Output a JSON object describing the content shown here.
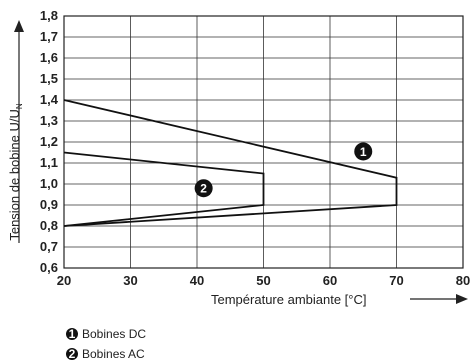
{
  "chart_data": {
    "type": "line",
    "ylabel_main": "Tension de bobine U/U",
    "ylabel_sub": "N",
    "xlabel": "Température ambiante [°C]",
    "xlim": [
      20,
      80
    ],
    "ylim": [
      0.6,
      1.8
    ],
    "grid": true,
    "x_ticks": [
      "20",
      "30",
      "40",
      "50",
      "60",
      "70",
      "80"
    ],
    "y_ticks": [
      "0,6",
      "0,7",
      "0,8",
      "0,9",
      "1,0",
      "1,1",
      "1,2",
      "1,3",
      "1,4",
      "1,5",
      "1,6",
      "1,7",
      "1,8"
    ],
    "series": [
      {
        "marker": "1",
        "name": "Bobines DC",
        "x": [
          20,
          70,
          70,
          20
        ],
        "y": [
          1.4,
          1.03,
          0.9,
          0.8
        ]
      },
      {
        "marker": "2",
        "name": "Bobines AC",
        "x": [
          20,
          50,
          50,
          20
        ],
        "y": [
          1.15,
          1.05,
          0.9,
          0.8
        ]
      }
    ],
    "curve_markers": [
      {
        "label": "1",
        "x": 65,
        "y": 1.155
      },
      {
        "label": "2",
        "x": 41,
        "y": 0.98
      }
    ]
  }
}
